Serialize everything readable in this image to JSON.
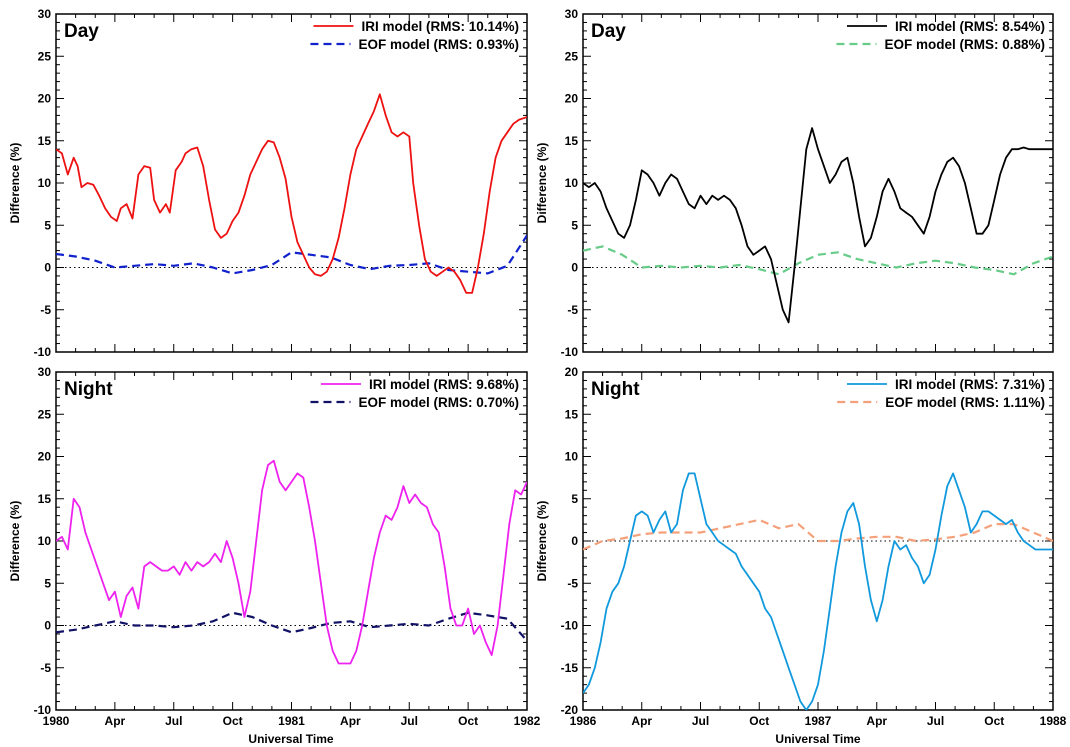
{
  "xlabel": "Universal Time",
  "chart_data": [
    {
      "type": "line",
      "panel_label": "Day",
      "ylabel": "Difference (%)",
      "ylim": [
        -10,
        30
      ],
      "yticks": [
        -10,
        -5,
        0,
        5,
        10,
        15,
        20,
        25,
        30
      ],
      "xlim": [
        0,
        24
      ],
      "xticks": [
        {
          "x": 0,
          "label": ""
        },
        {
          "x": 3,
          "label": ""
        },
        {
          "x": 6,
          "label": ""
        },
        {
          "x": 9,
          "label": ""
        },
        {
          "x": 12,
          "label": ""
        },
        {
          "x": 15,
          "label": ""
        },
        {
          "x": 18,
          "label": ""
        },
        {
          "x": 21,
          "label": ""
        },
        {
          "x": 24,
          "label": ""
        }
      ],
      "legend_position": "top-right",
      "zero_line": true,
      "series": [
        {
          "name": "IRI model (RMS: 10.14%)",
          "color": "#ee1111",
          "dash": "solid",
          "x": [
            0,
            0.3,
            0.6,
            0.9,
            1.1,
            1.3,
            1.6,
            1.9,
            2.2,
            2.5,
            2.8,
            3.1,
            3.3,
            3.6,
            3.9,
            4.2,
            4.5,
            4.8,
            5.0,
            5.3,
            5.6,
            5.8,
            6.1,
            6.4,
            6.6,
            6.9,
            7.2,
            7.5,
            7.8,
            8.1,
            8.4,
            8.7,
            9.0,
            9.3,
            9.6,
            9.9,
            10.2,
            10.5,
            10.8,
            11.1,
            11.4,
            11.7,
            12.0,
            12.3,
            12.6,
            12.9,
            13.2,
            13.5,
            13.8,
            14.1,
            14.4,
            14.7,
            15.0,
            15.3,
            15.6,
            15.9,
            16.2,
            16.5,
            16.8,
            17.1,
            17.4,
            17.7,
            18.0,
            18.2,
            18.5,
            18.8,
            19.1,
            19.4,
            19.7,
            20.0,
            20.3,
            20.6,
            20.9,
            21.2,
            21.5,
            21.8,
            22.1,
            22.4,
            22.7,
            23.0,
            23.3,
            23.6,
            24.0
          ],
          "y": [
            14,
            13.5,
            11,
            13,
            12,
            9.5,
            10,
            9.8,
            8.5,
            7,
            6,
            5.5,
            7,
            7.5,
            5.8,
            11,
            12,
            11.8,
            8,
            6.5,
            7.5,
            6.5,
            11.5,
            12.5,
            13.5,
            14,
            14.2,
            12,
            8,
            4.5,
            3.5,
            4,
            5.5,
            6.5,
            8.5,
            11,
            12.5,
            14,
            15,
            14.8,
            13,
            10.5,
            6,
            3,
            1.5,
            0,
            -0.8,
            -1,
            -0.5,
            1,
            3.5,
            7,
            11,
            14,
            15.5,
            17,
            18.5,
            20.5,
            18,
            16,
            15.5,
            16,
            15.5,
            10,
            5,
            1,
            -0.5,
            -1,
            -0.5,
            0,
            -0.5,
            -1.5,
            -3,
            -3,
            0,
            4,
            9,
            13,
            15,
            16,
            17,
            17.5,
            17.8
          ]
        },
        {
          "name": "EOF model (RMS:  0.93%)",
          "color": "#1122cc",
          "dash": "dashed",
          "x": [
            0,
            1,
            2,
            3,
            4,
            5,
            6,
            7,
            8,
            9,
            10,
            11,
            12,
            13,
            14,
            15,
            16,
            17,
            18,
            19,
            20,
            21,
            22,
            23,
            24
          ],
          "y": [
            1.6,
            1.3,
            0.8,
            0,
            0.2,
            0.4,
            0.2,
            0.5,
            0,
            -0.7,
            -0.3,
            0.3,
            1.8,
            1.5,
            1.2,
            0.3,
            -0.2,
            0.2,
            0.3,
            0.5,
            -0.3,
            -0.5,
            -0.7,
            0.2,
            3.8
          ]
        }
      ]
    },
    {
      "type": "line",
      "panel_label": "Day",
      "ylabel": "Difference (%)",
      "ylim": [
        -10,
        30
      ],
      "yticks": [
        -10,
        -5,
        0,
        5,
        10,
        15,
        20,
        25,
        30
      ],
      "xlim": [
        0,
        24
      ],
      "xticks": [
        {
          "x": 0,
          "label": ""
        },
        {
          "x": 3,
          "label": ""
        },
        {
          "x": 6,
          "label": ""
        },
        {
          "x": 9,
          "label": ""
        },
        {
          "x": 12,
          "label": ""
        },
        {
          "x": 15,
          "label": ""
        },
        {
          "x": 18,
          "label": ""
        },
        {
          "x": 21,
          "label": ""
        },
        {
          "x": 24,
          "label": ""
        }
      ],
      "legend_position": "top-right",
      "zero_line": true,
      "series": [
        {
          "name": "IRI model (RMS:  8.54%)",
          "color": "#000000",
          "dash": "solid",
          "x": [
            0,
            0.3,
            0.6,
            0.9,
            1.2,
            1.5,
            1.8,
            2.1,
            2.4,
            2.7,
            3.0,
            3.3,
            3.6,
            3.9,
            4.2,
            4.5,
            4.8,
            5.1,
            5.4,
            5.7,
            6.0,
            6.3,
            6.6,
            6.9,
            7.2,
            7.5,
            7.8,
            8.1,
            8.4,
            8.7,
            9.0,
            9.3,
            9.6,
            9.9,
            10.2,
            10.5,
            10.8,
            11.1,
            11.4,
            11.7,
            12.0,
            12.3,
            12.6,
            12.9,
            13.2,
            13.5,
            13.8,
            14.1,
            14.4,
            14.7,
            15.0,
            15.3,
            15.6,
            15.9,
            16.2,
            16.5,
            16.8,
            17.1,
            17.4,
            17.7,
            18.0,
            18.3,
            18.6,
            18.9,
            19.2,
            19.5,
            19.8,
            20.1,
            20.4,
            20.7,
            21.0,
            21.3,
            21.6,
            21.9,
            22.2,
            22.5,
            22.8,
            23.1,
            23.4,
            23.7,
            24.0
          ],
          "y": [
            10,
            9.5,
            10,
            9,
            7,
            5.5,
            4,
            3.5,
            5,
            8,
            11.5,
            11,
            10,
            8.5,
            10,
            11,
            10.5,
            9,
            7.5,
            7,
            8.5,
            7.5,
            8.5,
            8,
            8.5,
            8,
            7,
            5,
            2.5,
            1.5,
            2,
            2.5,
            1,
            -2,
            -5,
            -6.5,
            0,
            7,
            14,
            16.5,
            14,
            12,
            10,
            11,
            12.5,
            13,
            10,
            6,
            2.5,
            3.5,
            6,
            9,
            10.5,
            9,
            7,
            6.5,
            6,
            5,
            4,
            6,
            9,
            11,
            12.5,
            13,
            12,
            10,
            7,
            4,
            4,
            5,
            8,
            11,
            13,
            14,
            14,
            14.2,
            14,
            14,
            14,
            14,
            14
          ]
        },
        {
          "name": "EOF model (RMS:  0.88%)",
          "color": "#66cc88",
          "dash": "dashed",
          "x": [
            0,
            1,
            2,
            3,
            4,
            5,
            6,
            7,
            8,
            9,
            10,
            11,
            12,
            13,
            14,
            15,
            16,
            17,
            18,
            19,
            20,
            21,
            22,
            23,
            24
          ],
          "y": [
            2,
            2.5,
            1.5,
            0,
            0.2,
            0,
            0.2,
            0,
            0.3,
            -0.2,
            -0.8,
            0.5,
            1.5,
            1.8,
            1,
            0.5,
            0,
            0.5,
            0.8,
            0.5,
            0,
            -0.3,
            -0.8,
            0.5,
            1.3
          ]
        }
      ]
    },
    {
      "type": "line",
      "panel_label": "Night",
      "ylabel": "Difference (%)",
      "ylim": [
        -10,
        30
      ],
      "yticks": [
        -10,
        -5,
        0,
        5,
        10,
        15,
        20,
        25,
        30
      ],
      "xlim": [
        0,
        24
      ],
      "xticks": [
        {
          "x": 0,
          "label": "1980"
        },
        {
          "x": 3,
          "label": "Apr"
        },
        {
          "x": 6,
          "label": "Jul"
        },
        {
          "x": 9,
          "label": "Oct"
        },
        {
          "x": 12,
          "label": "1981"
        },
        {
          "x": 15,
          "label": "Apr"
        },
        {
          "x": 18,
          "label": "Jul"
        },
        {
          "x": 21,
          "label": "Oct"
        },
        {
          "x": 24,
          "label": "1982"
        }
      ],
      "legend_position": "top-right",
      "zero_line": true,
      "series": [
        {
          "name": "IRI model (RMS:  9.68%)",
          "color": "#ee22ee",
          "dash": "solid",
          "x": [
            0,
            0.3,
            0.6,
            0.9,
            1.2,
            1.5,
            1.8,
            2.1,
            2.4,
            2.7,
            3.0,
            3.3,
            3.6,
            3.9,
            4.2,
            4.5,
            4.8,
            5.1,
            5.4,
            5.7,
            6.0,
            6.3,
            6.6,
            6.9,
            7.2,
            7.5,
            7.8,
            8.1,
            8.4,
            8.7,
            9.0,
            9.3,
            9.6,
            9.9,
            10.2,
            10.5,
            10.8,
            11.1,
            11.4,
            11.7,
            12.0,
            12.3,
            12.6,
            12.9,
            13.2,
            13.5,
            13.8,
            14.1,
            14.4,
            14.7,
            15.0,
            15.3,
            15.6,
            15.9,
            16.2,
            16.5,
            16.8,
            17.1,
            17.4,
            17.7,
            18.0,
            18.3,
            18.6,
            18.9,
            19.2,
            19.5,
            19.8,
            20.1,
            20.4,
            20.7,
            21.0,
            21.3,
            21.6,
            21.9,
            22.2,
            22.5,
            22.8,
            23.1,
            23.4,
            23.7,
            24.0
          ],
          "y": [
            10,
            10.5,
            9,
            15,
            14,
            11,
            9,
            7,
            5,
            3,
            4,
            1,
            3.5,
            4.5,
            2,
            7,
            7.5,
            7,
            6.5,
            6.5,
            7,
            6,
            7.5,
            6.5,
            7.5,
            7,
            7.5,
            8.5,
            7.5,
            10,
            8,
            5,
            1,
            4,
            10,
            16,
            19,
            19.5,
            17,
            16,
            17,
            18,
            17.5,
            14,
            10,
            5,
            0,
            -3,
            -4.5,
            -4.5,
            -4.5,
            -3,
            0,
            4,
            8,
            11,
            13,
            12.5,
            14,
            16.5,
            14.5,
            15.5,
            14.5,
            14,
            12,
            11,
            7,
            2,
            0,
            0,
            2,
            -1,
            0,
            -2,
            -3.5,
            0,
            6,
            12,
            16,
            15.5,
            17
          ]
        },
        {
          "name": "EOF model (RMS:  0.70%)",
          "color": "#111166",
          "dash": "dashed",
          "x": [
            0,
            1,
            2,
            3,
            4,
            5,
            6,
            7,
            8,
            9,
            10,
            11,
            12,
            13,
            14,
            15,
            16,
            17,
            18,
            19,
            20,
            21,
            22,
            23,
            24
          ],
          "y": [
            -0.8,
            -0.5,
            0,
            0.5,
            0,
            0,
            -0.2,
            0,
            0.5,
            1.5,
            1,
            0,
            -0.8,
            -0.3,
            0.3,
            0.5,
            -0.2,
            0,
            0.2,
            0,
            0.8,
            1.5,
            1.2,
            0.8,
            -1.8
          ]
        }
      ]
    },
    {
      "type": "line",
      "panel_label": "Night",
      "ylabel": "Difference (%)",
      "ylim": [
        -20,
        20
      ],
      "yticks": [
        -20,
        -15,
        -10,
        -5,
        0,
        5,
        10,
        15,
        20
      ],
      "xlim": [
        0,
        24
      ],
      "xticks": [
        {
          "x": 0,
          "label": "1986"
        },
        {
          "x": 3,
          "label": "Apr"
        },
        {
          "x": 6,
          "label": "Jul"
        },
        {
          "x": 9,
          "label": "Oct"
        },
        {
          "x": 12,
          "label": "1987"
        },
        {
          "x": 15,
          "label": "Apr"
        },
        {
          "x": 18,
          "label": "Jul"
        },
        {
          "x": 21,
          "label": "Oct"
        },
        {
          "x": 24,
          "label": "1988"
        }
      ],
      "legend_position": "top-right",
      "zero_line": true,
      "series": [
        {
          "name": "IRI model (RMS:  7.31%)",
          "color": "#1199dd",
          "dash": "solid",
          "x": [
            0,
            0.3,
            0.6,
            0.9,
            1.2,
            1.5,
            1.8,
            2.1,
            2.4,
            2.7,
            3.0,
            3.3,
            3.6,
            3.9,
            4.2,
            4.5,
            4.8,
            5.1,
            5.4,
            5.7,
            6.0,
            6.3,
            6.6,
            6.9,
            7.2,
            7.5,
            7.8,
            8.1,
            8.4,
            8.7,
            9.0,
            9.3,
            9.6,
            9.9,
            10.2,
            10.5,
            10.8,
            11.1,
            11.4,
            11.7,
            12.0,
            12.3,
            12.6,
            12.9,
            13.2,
            13.5,
            13.8,
            14.1,
            14.4,
            14.7,
            15.0,
            15.3,
            15.6,
            15.9,
            16.2,
            16.5,
            16.8,
            17.1,
            17.4,
            17.7,
            18.0,
            18.3,
            18.6,
            18.9,
            19.2,
            19.5,
            19.8,
            20.1,
            20.4,
            20.7,
            21.0,
            21.3,
            21.6,
            21.9,
            22.2,
            22.5,
            22.8,
            23.1,
            23.4,
            23.7,
            24.0
          ],
          "y": [
            -18,
            -17,
            -15,
            -12,
            -8,
            -6,
            -5,
            -3,
            0,
            3,
            3.5,
            3,
            1,
            2.5,
            3.5,
            1,
            2,
            6,
            8,
            8,
            5,
            2,
            1,
            0,
            -0.5,
            -1,
            -1.5,
            -3,
            -4,
            -5,
            -6,
            -8,
            -9,
            -11,
            -13,
            -15,
            -17,
            -19,
            -20,
            -19,
            -17,
            -13,
            -8,
            -3,
            1,
            3.5,
            4.5,
            2,
            -3,
            -7,
            -9.5,
            -7,
            -3,
            0,
            -1,
            -0.5,
            -2,
            -3,
            -5,
            -4,
            -1,
            3,
            6.5,
            8,
            6,
            4,
            1,
            2,
            3.5,
            3.5,
            3,
            2.5,
            2,
            2.5,
            1,
            0,
            -0.5,
            -1,
            -1,
            -1,
            -1
          ]
        },
        {
          "name": "EOF model (RMS:  1.11%)",
          "color": "#f4a07a",
          "dash": "dashed",
          "x": [
            0,
            1,
            2,
            3,
            4,
            5,
            6,
            7,
            8,
            9,
            10,
            11,
            12,
            13,
            14,
            15,
            16,
            17,
            18,
            19,
            20,
            21,
            22,
            23,
            24
          ],
          "y": [
            -1,
            0,
            0.3,
            0.8,
            1,
            1,
            1,
            1.5,
            2,
            2.5,
            1.5,
            2,
            0,
            0,
            0.3,
            0.5,
            0.5,
            0,
            0.2,
            0.5,
            1,
            2,
            2,
            1,
            0
          ]
        }
      ]
    }
  ]
}
